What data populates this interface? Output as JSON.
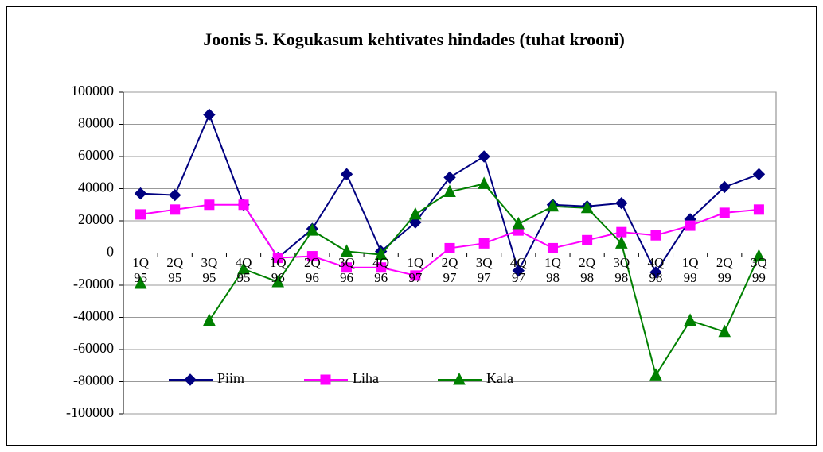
{
  "chart_data": {
    "type": "line",
    "title": "Joonis 5. Kogukasum kehtivates hindades (tuhat krooni)",
    "categories": [
      "1Q 95",
      "2Q 95",
      "3Q 95",
      "4Q 95",
      "1Q 96",
      "2Q 96",
      "3Q 96",
      "4Q 96",
      "1Q 97",
      "2Q 97",
      "3Q 97",
      "4Q 97",
      "1Q 98",
      "2Q 98",
      "3Q 98",
      "4Q 98",
      "1Q 99",
      "2Q 99",
      "3Q 99"
    ],
    "series": [
      {
        "name": "Piim",
        "color": "#000080",
        "marker": "diamond",
        "values": [
          37000,
          36000,
          86000,
          30000,
          -3000,
          15000,
          49000,
          1000,
          19000,
          47000,
          60000,
          -11000,
          30000,
          29000,
          31000,
          -12000,
          21000,
          41000,
          49000
        ]
      },
      {
        "name": "Liha",
        "color": "#ff00ff",
        "marker": "square",
        "values": [
          24000,
          27000,
          30000,
          30000,
          -3000,
          -2000,
          -9000,
          -9000,
          -14000,
          3000,
          6000,
          14000,
          3000,
          8000,
          13000,
          11000,
          17000,
          25000,
          27000
        ]
      },
      {
        "name": "Kala",
        "color": "#008000",
        "marker": "triangle",
        "values": [
          -19000,
          null,
          -42000,
          -10000,
          -18000,
          14000,
          1000,
          -1000,
          24000,
          38000,
          43000,
          18000,
          29000,
          28000,
          6000,
          -76000,
          -42000,
          -49000,
          -2000
        ]
      }
    ],
    "ylim": [
      -100000,
      100000
    ],
    "yticks": [
      -100000,
      -80000,
      -60000,
      -40000,
      -20000,
      0,
      20000,
      40000,
      60000,
      80000,
      100000
    ],
    "grid": true,
    "legend": "bottom-left"
  }
}
